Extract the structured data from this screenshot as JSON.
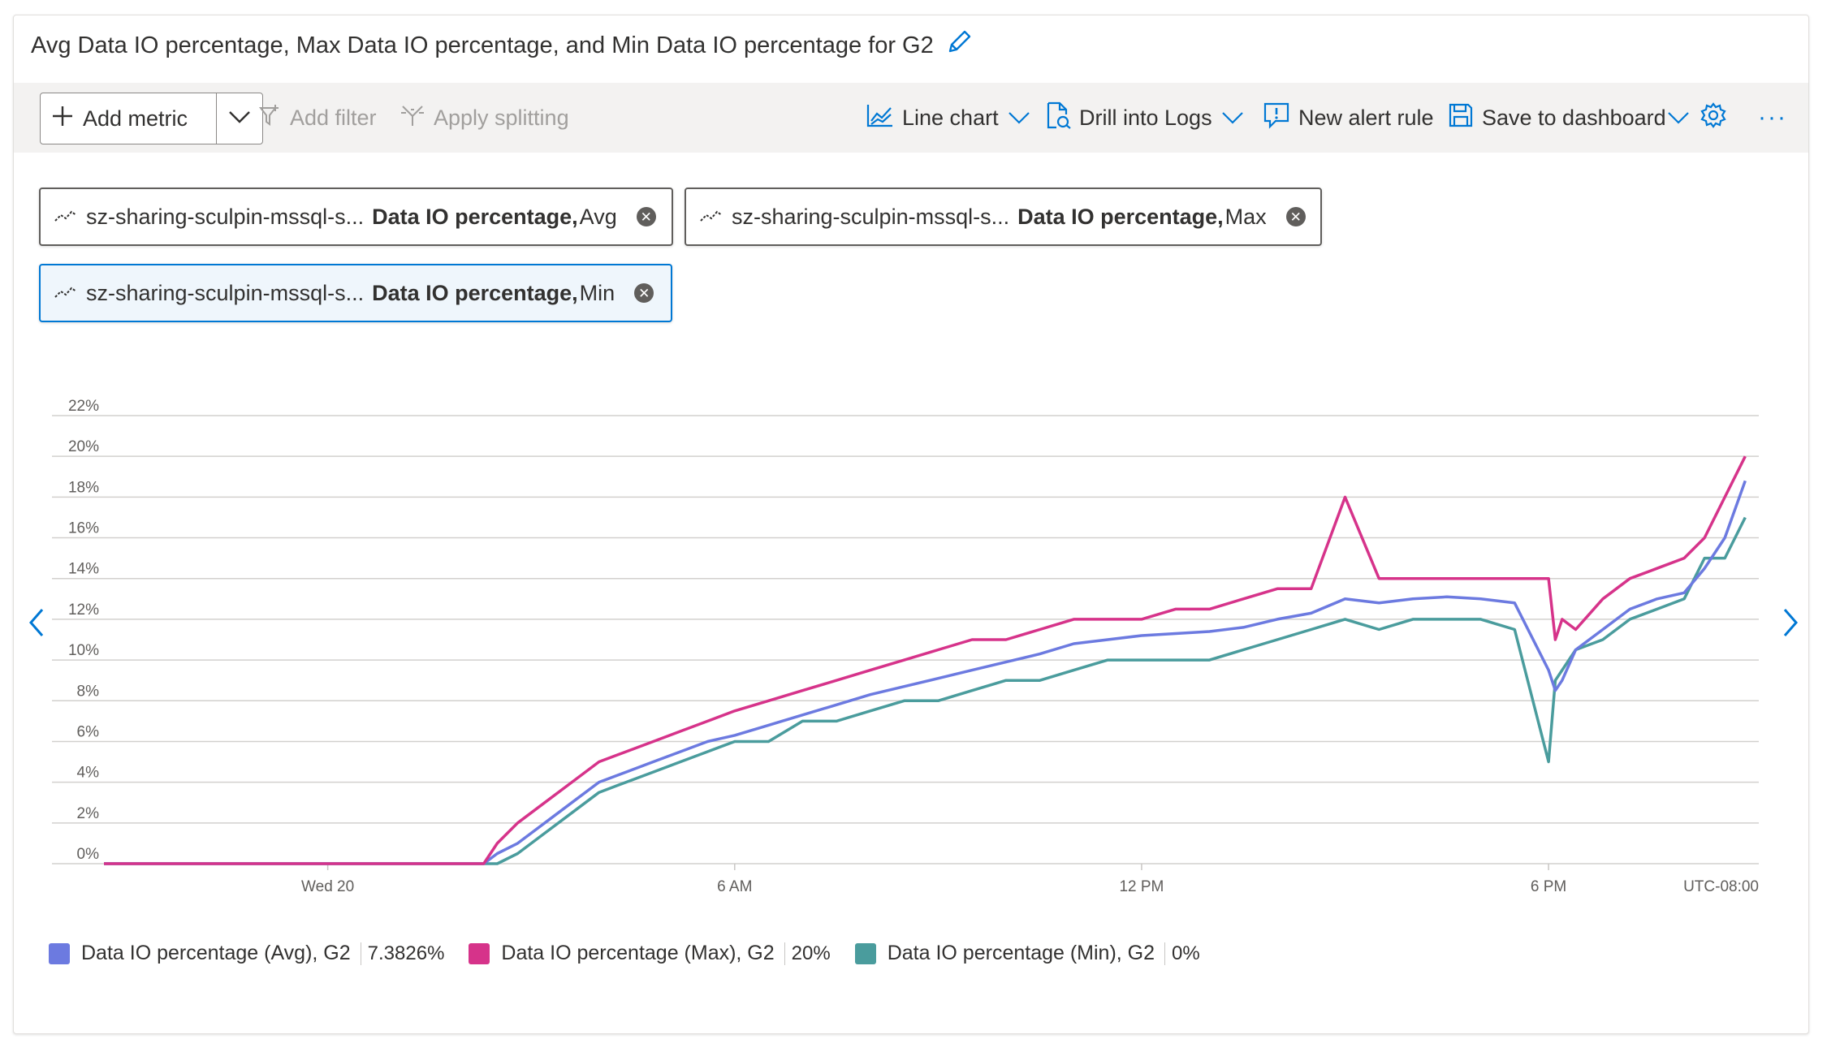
{
  "title": "Avg Data IO percentage, Max Data IO percentage, and Min Data IO percentage for G2",
  "toolbar": {
    "add_metric": "Add metric",
    "add_filter": "Add filter",
    "apply_splitting": "Apply splitting",
    "line_chart": "Line chart",
    "drill_into_logs": "Drill into Logs",
    "new_alert_rule": "New alert rule",
    "save_to_dashboard": "Save to dashboard",
    "more": "···"
  },
  "pills": [
    {
      "resource": "sz-sharing-sculpin-mssql-s...",
      "metric": "Data IO percentage,",
      "agg": "Avg",
      "selected": false
    },
    {
      "resource": "sz-sharing-sculpin-mssql-s...",
      "metric": "Data IO percentage,",
      "agg": "Max",
      "selected": false
    },
    {
      "resource": "sz-sharing-sculpin-mssql-s...",
      "metric": "Data IO percentage,",
      "agg": "Min",
      "selected": true
    }
  ],
  "icons": {
    "edit": "pencil-icon",
    "add": "plus-icon",
    "filter": "filter-icon",
    "split": "split-icon",
    "line": "line-chart-icon",
    "logs": "logs-icon",
    "alert": "alert-icon",
    "save": "save-icon",
    "settings": "gear-icon",
    "prev": "chevron-left-icon",
    "next": "chevron-right-icon"
  },
  "colors": {
    "avg": "#6c7ae0",
    "max": "#d6338a",
    "min": "#4a9c9d",
    "accent": "#0078d4"
  },
  "chart_data": {
    "type": "line",
    "ylim": [
      0,
      22
    ],
    "yticks": [
      "0%",
      "2%",
      "4%",
      "6%",
      "8%",
      "10%",
      "12%",
      "14%",
      "16%",
      "18%",
      "20%",
      "22%"
    ],
    "xticks": [
      {
        "label": "Wed 20",
        "hour": 0
      },
      {
        "label": "6 AM",
        "hour": 6
      },
      {
        "label": "12 PM",
        "hour": 12
      },
      {
        "label": "6 PM",
        "hour": 18
      }
    ],
    "xrange_hours": [
      -3.3,
      21.1
    ],
    "timezone": "UTC-08:00",
    "hours": [
      -3.3,
      2.3,
      2.5,
      2.8,
      3.2,
      3.6,
      4.0,
      4.4,
      4.8,
      5.2,
      5.6,
      6.0,
      6.5,
      7.0,
      7.5,
      8.0,
      8.5,
      9.0,
      9.5,
      10.0,
      10.5,
      11.0,
      11.5,
      12.0,
      12.5,
      13.0,
      13.5,
      14.0,
      14.5,
      15.0,
      15.5,
      16.0,
      16.5,
      17.0,
      17.5,
      18.0,
      18.1,
      18.2,
      18.4,
      18.8,
      19.2,
      19.6,
      20.0,
      20.3,
      20.6,
      20.9
    ],
    "series": [
      {
        "name": "Data IO percentage (Avg), G2",
        "key": "avg",
        "summary": "7.3826%",
        "values": [
          0,
          0,
          0.5,
          1,
          2,
          3,
          4,
          4.5,
          5,
          5.5,
          6,
          6.3,
          6.8,
          7.3,
          7.8,
          8.3,
          8.7,
          9.1,
          9.5,
          9.9,
          10.3,
          10.8,
          11.0,
          11.2,
          11.3,
          11.4,
          11.6,
          12.0,
          12.3,
          13.0,
          12.8,
          13.0,
          13.1,
          13.0,
          12.8,
          9.5,
          8.5,
          9.0,
          10.5,
          11.5,
          12.5,
          13.0,
          13.3,
          14.5,
          16.0,
          18.8
        ]
      },
      {
        "name": "Data IO percentage (Max), G2",
        "key": "max",
        "summary": "20%",
        "values": [
          0,
          0,
          1,
          2,
          3,
          4,
          5,
          5.5,
          6,
          6.5,
          7,
          7.5,
          8,
          8.5,
          9,
          9.5,
          10,
          10.5,
          11,
          11,
          11.5,
          12,
          12,
          12,
          12.5,
          12.5,
          13,
          13.5,
          13.5,
          18,
          14,
          14,
          14,
          14,
          14,
          14,
          11,
          12,
          11.5,
          13,
          14,
          14.5,
          15,
          16,
          18,
          20
        ]
      },
      {
        "name": "Data IO percentage (Min), G2",
        "key": "min",
        "summary": "0%",
        "values": [
          0,
          0,
          0,
          0.5,
          1.5,
          2.5,
          3.5,
          4,
          4.5,
          5,
          5.5,
          6,
          6,
          7,
          7,
          7.5,
          8,
          8,
          8.5,
          9,
          9,
          9.5,
          10,
          10,
          10,
          10,
          10.5,
          11,
          11.5,
          12,
          11.5,
          12,
          12,
          12,
          11.5,
          5,
          9,
          9.5,
          10.5,
          11,
          12,
          12.5,
          13,
          15,
          15,
          17
        ]
      }
    ]
  }
}
